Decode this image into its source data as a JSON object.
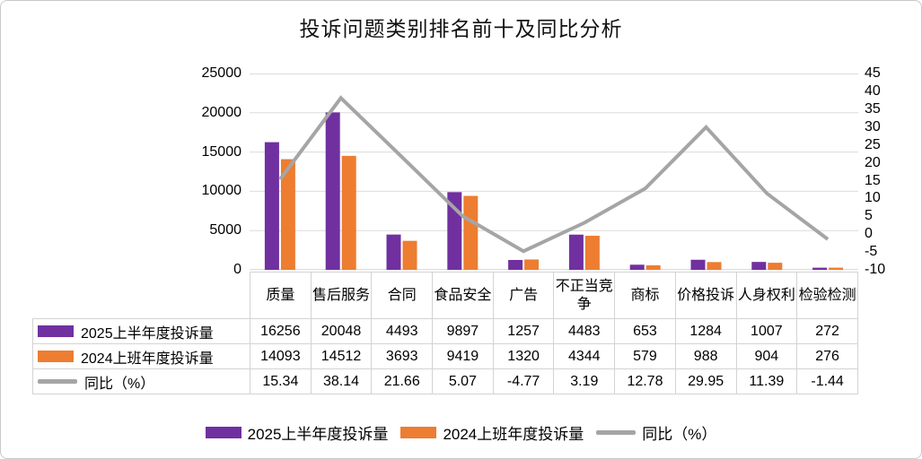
{
  "title": "投诉问题类别排名前十及同比分析",
  "colors": {
    "purple": "#7030A0",
    "orange": "#ED7D31",
    "line_gray": "#A5A5A5",
    "grid": "#DCDCDC",
    "table_border": "#D3D3D3"
  },
  "axes": {
    "left": {
      "ticks": [
        "25000",
        "20000",
        "15000",
        "10000",
        "5000",
        "0"
      ]
    },
    "right": {
      "ticks": [
        "45",
        "40",
        "35",
        "30",
        "25",
        "20",
        "15",
        "10",
        "5",
        "0",
        "-5",
        "-10"
      ]
    }
  },
  "chart_data": {
    "type": "combo-bar-line",
    "title": "投诉问题类别排名前十及同比分析",
    "categories": [
      "质量",
      "售后服务",
      "合同",
      "食品安全",
      "广告",
      "不正当竞争",
      "商标",
      "价格投诉",
      "人身权利",
      "检验检测"
    ],
    "series": [
      {
        "name": "2025上半年度投诉量",
        "type": "bar",
        "axis": "left",
        "color": "#7030A0",
        "values": [
          16256,
          20048,
          4493,
          9897,
          1257,
          4483,
          653,
          1284,
          1007,
          272
        ]
      },
      {
        "name": "2024上班年度投诉量",
        "type": "bar",
        "axis": "left",
        "color": "#ED7D31",
        "values": [
          14093,
          14512,
          3693,
          9419,
          1320,
          4344,
          579,
          988,
          904,
          276
        ]
      },
      {
        "name": "同比（%）",
        "type": "line",
        "axis": "right",
        "color": "#A5A5A5",
        "values": [
          15.34,
          38.14,
          21.66,
          5.07,
          -4.77,
          3.19,
          12.78,
          29.95,
          11.39,
          -1.44
        ]
      }
    ],
    "left_axis_range": [
      0,
      25000
    ],
    "right_axis_range": [
      -10,
      45
    ],
    "grid": true,
    "legend_position": "bottom",
    "data_table_shown": true
  }
}
